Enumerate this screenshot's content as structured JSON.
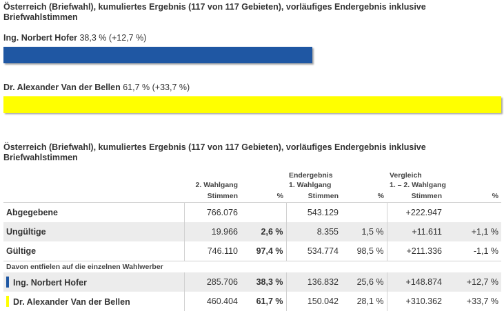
{
  "section1": {
    "title": "Österreich (Briefwahl), kumuliertes Ergebnis (117 von 117 Gebieten), vorläufiges Endergebnis inklusive Briefwahlstimmen"
  },
  "candidates": [
    {
      "name": "Ing. Norbert Hofer",
      "stats": "38,3 % (+12,7 %)",
      "share": 38.3,
      "color": "#1f57a3"
    },
    {
      "name": "Dr. Alexander Van der Bellen",
      "stats": "61,7 % (+33,7 %)",
      "share": 61.7,
      "color": "#ffff00"
    }
  ],
  "section2": {
    "title": "Österreich (Briefwahl), kumuliertes Ergebnis (117 von 117 Gebieten), vorläufiges Endergebnis inklusive Briefwahlstimmen"
  },
  "table": {
    "header": {
      "group1": "2. Wahlgang",
      "group2a": "Endergebnis",
      "group2b": "1. Wahlgang",
      "group3a": "Vergleich",
      "group3b": "1. – 2. Wahlgang",
      "stimmen": "Stimmen",
      "pct": "%"
    },
    "rows": [
      {
        "label": "Abgegebene",
        "s2": "766.076",
        "p2": "",
        "s1": "543.129",
        "p1": "",
        "diff": "+222.947",
        "dpct": ""
      },
      {
        "label": "Ungültige",
        "s2": "19.966",
        "p2": "2,6 %",
        "s1": "8.355",
        "p1": "1,5 %",
        "diff": "+11.611",
        "dpct": "+1,1 %"
      },
      {
        "label": "Gültige",
        "s2": "746.110",
        "p2": "97,4 %",
        "s1": "534.774",
        "p1": "98,5 %",
        "diff": "+211.336",
        "dpct": "-1,1 %"
      }
    ],
    "subheader": "Davon entfielen auf die einzelnen Wahlwerber",
    "cand_rows": [
      {
        "label": "Ing. Norbert Hofer",
        "s2": "285.706",
        "p2": "38,3 %",
        "s1": "136.832",
        "p1": "25,6 %",
        "diff": "+148.874",
        "dpct": "+12,7 %"
      },
      {
        "label": "Dr. Alexander Van der Bellen",
        "s2": "460.404",
        "p2": "61,7 %",
        "s1": "150.042",
        "p1": "28,1 %",
        "diff": "+310.362",
        "dpct": "+33,7 %"
      }
    ]
  }
}
